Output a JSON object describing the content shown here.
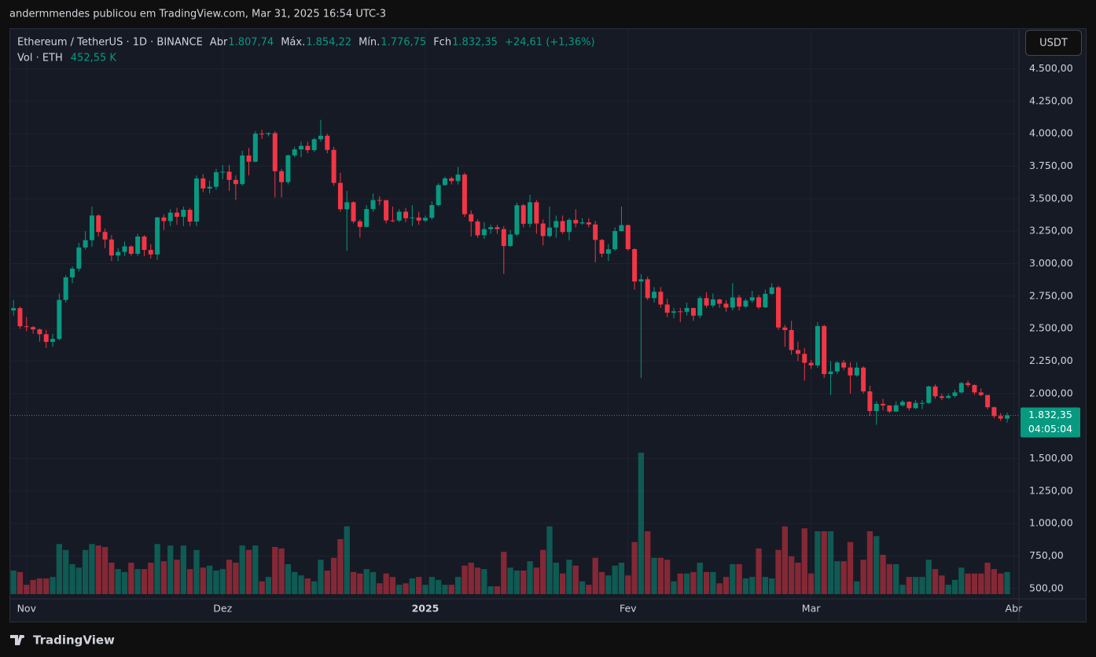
{
  "header": {
    "text": "andermmendes publicou em TradingView.com, Mar 31, 2025 16:54 UTC-3"
  },
  "chart_data": {
    "type": "candlestick",
    "symbol": "Ethereum / TetherUS · 1D · BINANCE",
    "ohlc_labels": [
      {
        "name": "Abr",
        "value": "1.807,74"
      },
      {
        "name": "Máx.",
        "value": "1.854,22"
      },
      {
        "name": "Mín.",
        "value": "1.776,75"
      },
      {
        "name": "Fch",
        "value": "1.832,35"
      }
    ],
    "change_label": "+24,61 (+1,36%)",
    "volume_label": "Vol · ETH",
    "volume_value_label": "452,55 K",
    "currency": "USDT",
    "last_price_label": "1.832,35",
    "countdown": "04:05:04",
    "up_color": "#089981",
    "down_color": "#f23645",
    "grid": true,
    "open": [
      2640,
      2658,
      2518,
      2512,
      2494,
      2457,
      2398,
      2421,
      2721,
      2895,
      2962,
      3125,
      3181,
      3371,
      3244,
      3186,
      3063,
      3091,
      3133,
      3076,
      3209,
      3106,
      3071,
      3356,
      3328,
      3393,
      3361,
      3415,
      3324,
      3656,
      3579,
      3592,
      3704,
      3708,
      3645,
      3613,
      3833,
      3785,
      4001,
      3997,
      4005,
      3712,
      3628,
      3834,
      3880,
      3907,
      3874,
      3958,
      3985,
      3876,
      3622,
      3419,
      3473,
      3326,
      3283,
      3421,
      3490,
      3489,
      3333,
      3332,
      3400,
      3350,
      3356,
      3332,
      3353,
      3451,
      3605,
      3657,
      3636,
      3686,
      3381,
      3325,
      3219,
      3266,
      3281,
      3266,
      3136,
      3225,
      3450,
      3307,
      3473,
      3309,
      3213,
      3278,
      3328,
      3244,
      3337,
      3310,
      3318,
      3302,
      3183,
      3077,
      3111,
      3251,
      3297,
      3112,
      2863,
      2880,
      2735,
      2784,
      2686,
      2623,
      2633,
      2630,
      2659,
      2600,
      2735,
      2678,
      2725,
      2692,
      2662,
      2740,
      2670,
      2716,
      2741,
      2664,
      2768,
      2818,
      2509,
      2489,
      2335,
      2306,
      2237,
      2217,
      2520,
      2150,
      2170,
      2239,
      2201,
      2140,
      2200,
      2017,
      1866,
      1921,
      1909,
      1862,
      1910,
      1937,
      1888,
      1928,
      1928,
      2055,
      1979,
      1967,
      1982,
      2009,
      2081,
      2066,
      2009,
      1989,
      1895,
      1827,
      1807.74
    ],
    "high": [
      2720,
      2670,
      2590,
      2520,
      2500,
      2490,
      2460,
      2770,
      2910,
      2980,
      3160,
      3250,
      3440,
      3380,
      3270,
      3220,
      3120,
      3170,
      3140,
      3230,
      3220,
      3150,
      3360,
      3380,
      3420,
      3430,
      3440,
      3430,
      3680,
      3690,
      3640,
      3730,
      3760,
      3760,
      3680,
      3870,
      3890,
      4020,
      4030,
      4010,
      4020,
      3730,
      3840,
      3900,
      3940,
      3940,
      3970,
      4107,
      4000,
      3900,
      3700,
      3560,
      3480,
      3340,
      3450,
      3540,
      3520,
      3490,
      3440,
      3420,
      3430,
      3450,
      3400,
      3370,
      3480,
      3620,
      3670,
      3670,
      3744,
      3700,
      3410,
      3340,
      3320,
      3300,
      3300,
      3290,
      3260,
      3470,
      3460,
      3530,
      3490,
      3340,
      3440,
      3370,
      3370,
      3350,
      3420,
      3350,
      3350,
      3330,
      3190,
      3150,
      3280,
      3440,
      3300,
      3120,
      2920,
      2900,
      2820,
      2820,
      2730,
      2660,
      2660,
      2700,
      2660,
      2750,
      2780,
      2770,
      2730,
      2720,
      2850,
      2760,
      2730,
      2790,
      2760,
      2800,
      2850,
      2830,
      2530,
      2560,
      2400,
      2350,
      2260,
      2550,
      2530,
      2250,
      2250,
      2260,
      2240,
      2240,
      2210,
      2060,
      1940,
      1960,
      1910,
      1940,
      1950,
      1940,
      1950,
      1950,
      2060,
      2070,
      2000,
      2000,
      2030,
      2090,
      2100,
      2070,
      2040,
      1990,
      1900,
      1850,
      1854.22
    ],
    "low": [
      2600,
      2500,
      2480,
      2460,
      2400,
      2350,
      2360,
      2410,
      2700,
      2850,
      2940,
      3110,
      3130,
      3210,
      3120,
      3020,
      3020,
      3060,
      3060,
      3060,
      3060,
      3040,
      3030,
      3260,
      3290,
      3300,
      3290,
      3290,
      3290,
      3550,
      3540,
      3570,
      3650,
      3560,
      3490,
      3600,
      3680,
      3780,
      3960,
      3980,
      3510,
      3510,
      3610,
      3820,
      3820,
      3850,
      3860,
      3940,
      3850,
      3600,
      3400,
      3100,
      3310,
      3200,
      3280,
      3400,
      3450,
      3310,
      3320,
      3320,
      3320,
      3290,
      3300,
      3320,
      3340,
      3440,
      3600,
      3610,
      3610,
      3360,
      3210,
      3200,
      3190,
      3230,
      3230,
      2920,
      3130,
      3210,
      3280,
      3280,
      3230,
      3140,
      3200,
      3200,
      3230,
      3180,
      3280,
      3300,
      3280,
      3010,
      3050,
      3020,
      3100,
      3250,
      3100,
      2800,
      2120,
      2720,
      2700,
      2660,
      2590,
      2580,
      2550,
      2600,
      2560,
      2580,
      2660,
      2660,
      2660,
      2630,
      2640,
      2640,
      2660,
      2700,
      2650,
      2660,
      2760,
      2490,
      2360,
      2300,
      2250,
      2100,
      2190,
      2200,
      2120,
      1990,
      2150,
      2180,
      2000,
      2130,
      2000,
      1830,
      1760,
      1870,
      1850,
      1860,
      1900,
      1870,
      1880,
      1880,
      1920,
      1960,
      1950,
      1960,
      1970,
      2000,
      2050,
      1990,
      1980,
      1880,
      1810,
      1790,
      1776.75
    ],
    "close": [
      2658,
      2518,
      2512,
      2494,
      2457,
      2398,
      2421,
      2721,
      2895,
      2962,
      3125,
      3181,
      3371,
      3244,
      3186,
      3063,
      3091,
      3133,
      3076,
      3209,
      3106,
      3071,
      3356,
      3328,
      3393,
      3361,
      3415,
      3324,
      3656,
      3579,
      3592,
      3704,
      3708,
      3645,
      3613,
      3833,
      3785,
      4001,
      3997,
      4005,
      3712,
      3628,
      3834,
      3880,
      3907,
      3874,
      3958,
      3985,
      3876,
      3622,
      3419,
      3473,
      3326,
      3283,
      3421,
      3490,
      3489,
      3333,
      3332,
      3400,
      3350,
      3356,
      3332,
      3353,
      3451,
      3605,
      3657,
      3636,
      3686,
      3381,
      3325,
      3219,
      3266,
      3281,
      3266,
      3136,
      3225,
      3450,
      3307,
      3473,
      3309,
      3213,
      3278,
      3328,
      3244,
      3337,
      3310,
      3318,
      3302,
      3183,
      3077,
      3111,
      3251,
      3297,
      3112,
      2863,
      2880,
      2735,
      2784,
      2686,
      2623,
      2633,
      2630,
      2659,
      2600,
      2735,
      2678,
      2725,
      2692,
      2662,
      2740,
      2670,
      2716,
      2741,
      2664,
      2768,
      2818,
      2509,
      2489,
      2335,
      2306,
      2237,
      2217,
      2520,
      2150,
      2170,
      2239,
      2201,
      2140,
      2200,
      2017,
      1866,
      1921,
      1909,
      1862,
      1910,
      1937,
      1888,
      1928,
      1928,
      2055,
      1979,
      1967,
      1982,
      2009,
      2081,
      2066,
      2009,
      1989,
      1895,
      1827,
      1808,
      1832.35
    ],
    "volume": [
      480,
      450,
      190,
      290,
      320,
      320,
      350,
      1020,
      900,
      610,
      540,
      900,
      1020,
      990,
      960,
      640,
      510,
      450,
      640,
      510,
      510,
      640,
      1020,
      670,
      990,
      700,
      990,
      510,
      900,
      540,
      580,
      480,
      510,
      700,
      640,
      990,
      900,
      990,
      260,
      350,
      960,
      930,
      610,
      450,
      380,
      320,
      260,
      700,
      480,
      740,
      1120,
      1380,
      450,
      420,
      510,
      450,
      220,
      420,
      350,
      190,
      220,
      320,
      350,
      190,
      350,
      290,
      190,
      190,
      350,
      580,
      640,
      540,
      510,
      160,
      160,
      860,
      540,
      480,
      480,
      670,
      540,
      900,
      1380,
      640,
      420,
      700,
      580,
      260,
      190,
      740,
      450,
      380,
      580,
      640,
      380,
      1060,
      2880,
      1280,
      740,
      740,
      700,
      260,
      420,
      420,
      450,
      640,
      450,
      450,
      220,
      350,
      610,
      610,
      320,
      350,
      930,
      350,
      320,
      900,
      1380,
      770,
      640,
      1340,
      420,
      1280,
      1280,
      1280,
      670,
      670,
      1060,
      260,
      700,
      1280,
      1180,
      800,
      610,
      610,
      190,
      350,
      350,
      350,
      700,
      510,
      380,
      190,
      290,
      540,
      420,
      420,
      420,
      640,
      510,
      420,
      452.55
    ],
    "ylim": [
      420,
      4800
    ],
    "yticks": [
      {
        "value": 500,
        "label": "500,00"
      },
      {
        "value": 750,
        "label": "750,00"
      },
      {
        "value": 1000,
        "label": "1.000,00"
      },
      {
        "value": 1250,
        "label": "1.250,00"
      },
      {
        "value": 1500,
        "label": "1.500,00"
      },
      {
        "value": 2000,
        "label": "2.000,00"
      },
      {
        "value": 2250,
        "label": "2.250,00"
      },
      {
        "value": 2500,
        "label": "2.500,00"
      },
      {
        "value": 2750,
        "label": "2.750,00"
      },
      {
        "value": 3000,
        "label": "3.000,00"
      },
      {
        "value": 3250,
        "label": "3.250,00"
      },
      {
        "value": 3500,
        "label": "3.500,00"
      },
      {
        "value": 3750,
        "label": "3.750,00"
      },
      {
        "value": 4000,
        "label": "4.000,00"
      },
      {
        "value": 4250,
        "label": "4.250,00"
      },
      {
        "value": 4500,
        "label": "4.500,00"
      }
    ],
    "xlim": [
      -0.5,
      153.8
    ],
    "xticks": [
      {
        "value": 2,
        "label": "Nov"
      },
      {
        "value": 32,
        "label": "Dez"
      },
      {
        "value": 63,
        "label": "2025"
      },
      {
        "value": 94,
        "label": "Fev"
      },
      {
        "value": 122,
        "label": "Mar"
      },
      {
        "value": 153,
        "label": "Abr"
      }
    ]
  },
  "footer": {
    "brand": "TradingView"
  }
}
